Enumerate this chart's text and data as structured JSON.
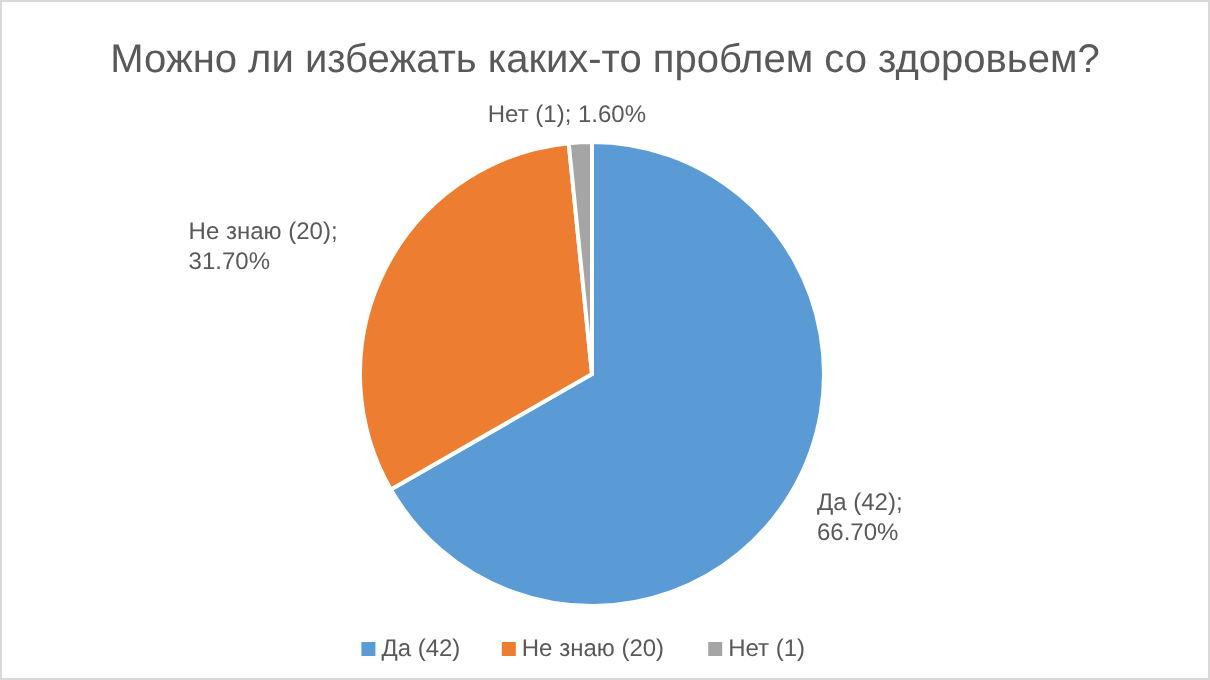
{
  "chart_data": {
    "type": "pie",
    "title": "Можно ли избежать каких-то проблем со здоровьем?",
    "categories": [
      "Да (42)",
      "Не знаю (20)",
      "Нет (1)"
    ],
    "values": [
      66.7,
      31.7,
      1.6
    ],
    "colors": [
      "#5b9bd5",
      "#ed7d31",
      "#a5a5a5"
    ],
    "value_labels": [
      "Да (42); 66.70%",
      "Не знаю (20); 31.70%",
      "Нет (1); 1.60%"
    ],
    "legend": "bottom"
  }
}
